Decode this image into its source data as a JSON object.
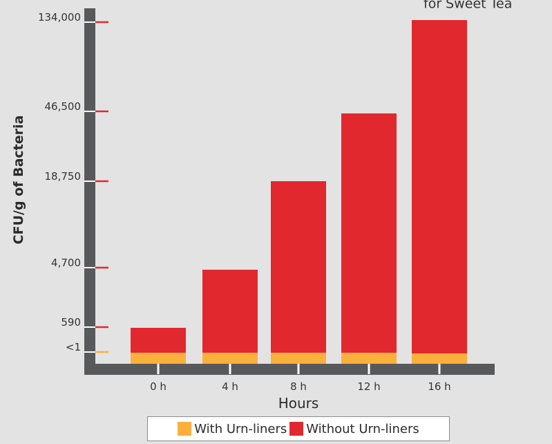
{
  "chart_data": {
    "type": "bar",
    "stacked": true,
    "categories": [
      "0 h",
      "4 h",
      "8 h",
      "12 h",
      "16 h"
    ],
    "series": [
      {
        "name": "With Urn-liners",
        "color": "#fbb03b",
        "values": [
          1,
          1,
          1,
          1,
          1
        ]
      },
      {
        "name": "Without Urn-liners",
        "color": "#e1282e",
        "values": [
          590,
          4700,
          18750,
          46500,
          134000
        ]
      }
    ],
    "y_ticks": [
      "<1",
      "590",
      "4,700",
      "18,750",
      "46,500",
      "134,000"
    ],
    "y_scale": "nonlinear (tick values evenly marked: <1, 590, 4,700, 18,750, 46,500, 134,000)",
    "xlabel": "Hours",
    "ylabel": "CFU/g of Bacteria",
    "title_clipped": "for Sweet Tea",
    "legend_placement": "bottom-center",
    "colors": {
      "axis": "#58595b",
      "tick_mark": "#e1282e",
      "background": "#e3e3e3"
    }
  }
}
